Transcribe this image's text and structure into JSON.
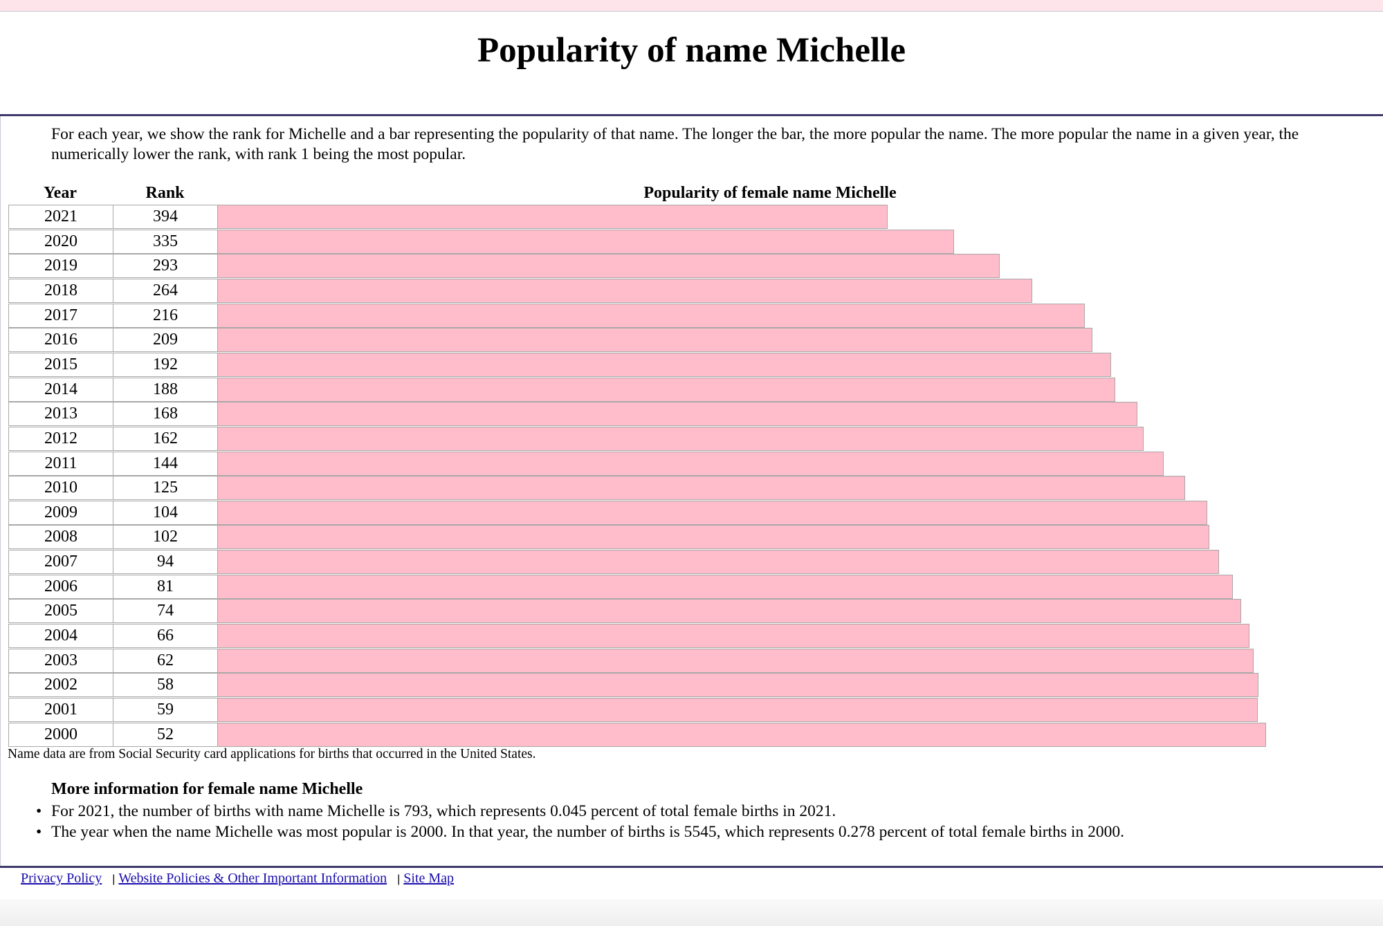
{
  "page": {
    "title": "Popularity of name Michelle",
    "intro": "For each year, we show the rank for Michelle and a bar representing the popularity of that name. The longer the bar, the more popular the name. The more popular the name in a given year, the numerically lower the rank, with rank 1 being the most popular."
  },
  "table": {
    "year_header": "Year",
    "rank_header": "Rank",
    "chart_header": "Popularity of female name Michelle"
  },
  "chart_data": {
    "type": "bar",
    "orientation": "horizontal",
    "title": "Popularity of female name Michelle",
    "bar_color": "#ffbccb",
    "categories": [
      "2021",
      "2020",
      "2019",
      "2018",
      "2017",
      "2016",
      "2015",
      "2014",
      "2013",
      "2012",
      "2011",
      "2010",
      "2009",
      "2008",
      "2007",
      "2006",
      "2005",
      "2004",
      "2003",
      "2002",
      "2001",
      "2000"
    ],
    "ranks": [
      394,
      335,
      293,
      264,
      216,
      209,
      192,
      188,
      168,
      162,
      144,
      125,
      104,
      102,
      94,
      81,
      74,
      66,
      62,
      58,
      59,
      52
    ],
    "popularity_relative_to_max": [
      0.639,
      0.702,
      0.746,
      0.777,
      0.827,
      0.834,
      0.852,
      0.856,
      0.877,
      0.883,
      0.902,
      0.923,
      0.944,
      0.946,
      0.955,
      0.968,
      0.976,
      0.984,
      0.988,
      0.993,
      0.992,
      1.0
    ]
  },
  "note": "Name data are from Social Security card applications for births that occurred in the United States.",
  "more_info": {
    "title": "More information for female name Michelle",
    "items": [
      "For 2021, the number of births with name Michelle is 793, which represents 0.045 percent of total female births in 2021.",
      "The year when the name Michelle was most popular is 2000. In that year, the number of births is 5545, which represents 0.278 percent of total female births in 2000."
    ]
  },
  "footer": {
    "links": [
      "Privacy Policy",
      "Website Policies & Other Important Information",
      "Site Map"
    ],
    "separator": "|"
  }
}
